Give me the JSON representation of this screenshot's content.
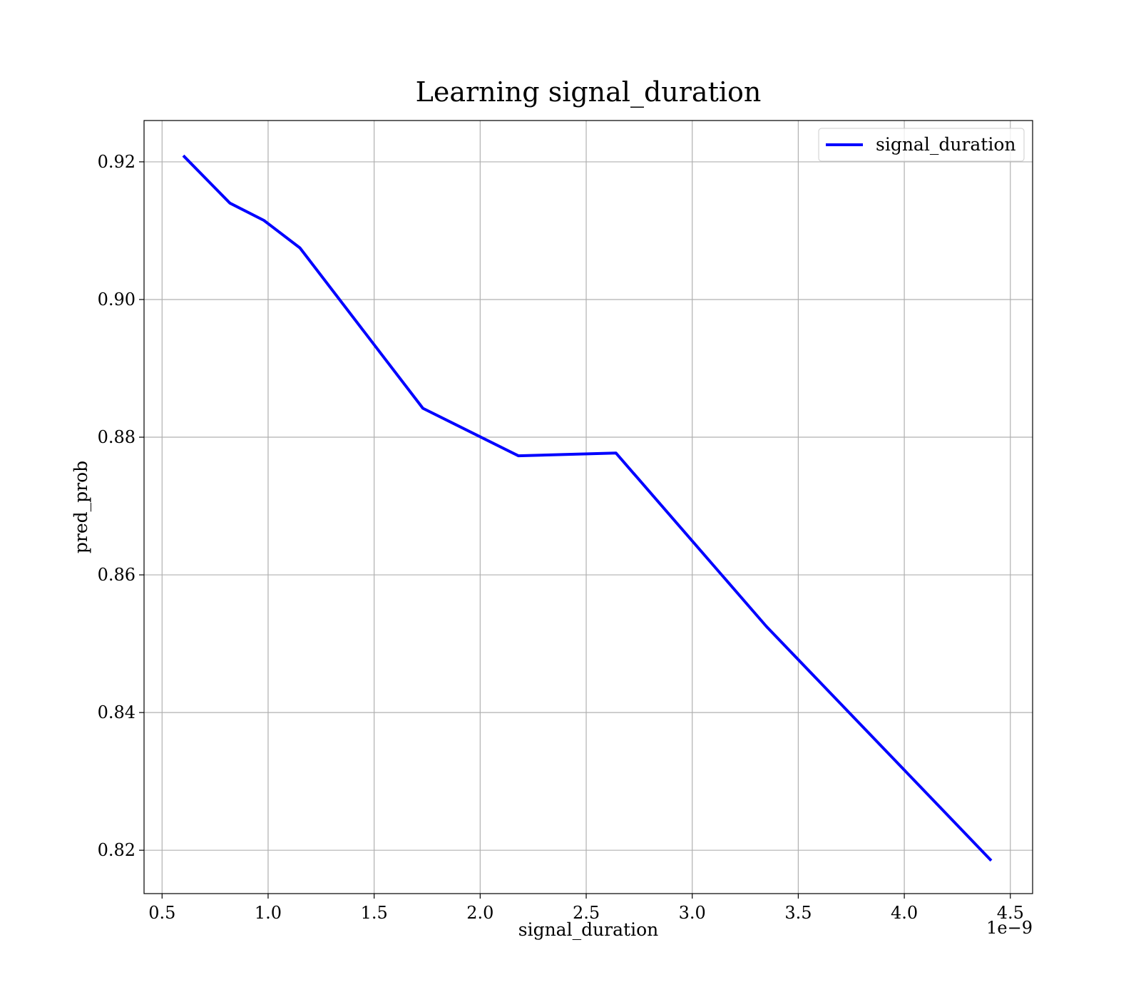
{
  "chart_data": {
    "type": "line",
    "title": "Learning signal_duration",
    "xlabel": "signal_duration",
    "ylabel": "pred_prob",
    "x_offset_text": "1e−9",
    "xlim": [
      0.415,
      4.605
    ],
    "ylim": [
      0.8137,
      0.926
    ],
    "x_ticks": [
      0.5,
      1.0,
      1.5,
      2.0,
      2.5,
      3.0,
      3.5,
      4.0,
      4.5
    ],
    "x_tick_labels": [
      "0.5",
      "1.0",
      "1.5",
      "2.0",
      "2.5",
      "3.0",
      "3.5",
      "4.0",
      "4.5"
    ],
    "y_ticks": [
      0.82,
      0.84,
      0.86,
      0.88,
      0.9,
      0.92
    ],
    "y_tick_labels": [
      "0.82",
      "0.84",
      "0.86",
      "0.88",
      "0.90",
      "0.92"
    ],
    "grid": true,
    "legend_position": "top-right",
    "series": [
      {
        "name": "signal_duration",
        "color": "#0000ff",
        "x": [
          0.6,
          0.82,
          0.98,
          1.15,
          1.73,
          2.18,
          2.64,
          3.35,
          4.41
        ],
        "y": [
          0.9209,
          0.914,
          0.9115,
          0.9075,
          0.8842,
          0.8773,
          0.8777,
          0.8525,
          0.8185
        ]
      }
    ]
  }
}
